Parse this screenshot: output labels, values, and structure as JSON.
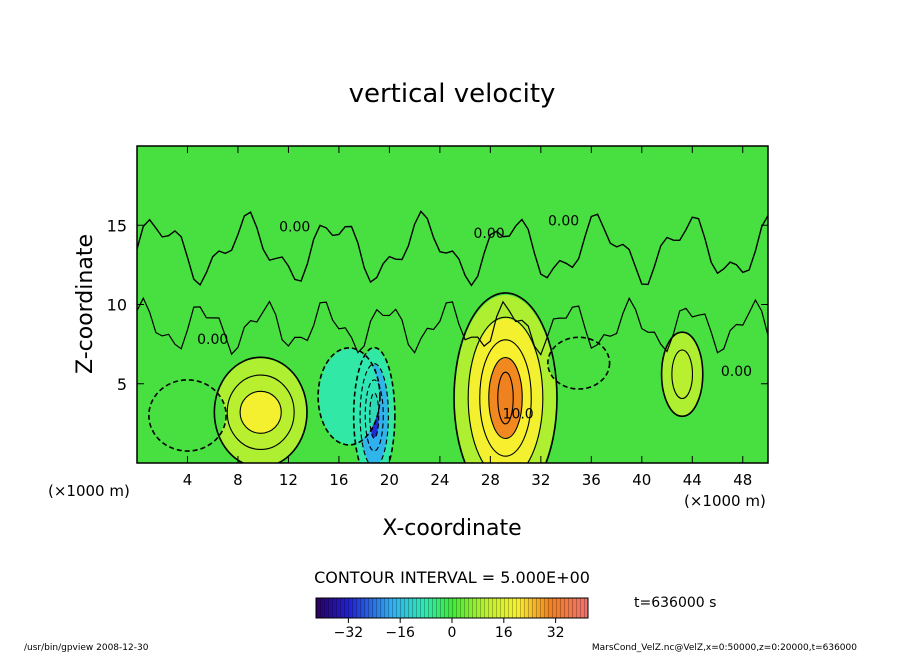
{
  "chart_data": {
    "type": "heatmap",
    "title": "vertical velocity",
    "xlabel": "X-coordinate",
    "ylabel": "Z-coordinate",
    "x_unit_left": "(×1000 m)",
    "x_unit_right": "(×1000 m)",
    "xlim": [
      0,
      50
    ],
    "ylim": [
      0,
      20
    ],
    "x_ticks": [
      "4",
      "8",
      "12",
      "16",
      "20",
      "24",
      "28",
      "32",
      "36",
      "40",
      "44",
      "48"
    ],
    "x_tick_values": [
      4,
      8,
      12,
      16,
      20,
      24,
      28,
      32,
      36,
      40,
      44,
      48
    ],
    "y_ticks": [
      "5",
      "10",
      "15"
    ],
    "y_tick_values": [
      5,
      10,
      15
    ],
    "contour_interval_label": "CONTOUR INTERVAL = 5.000E+00",
    "time_label": "t=636000 s",
    "contour_labels": [
      {
        "text": "0.00",
        "x": 12.5,
        "y": 14.6
      },
      {
        "text": "0.00",
        "x": 27.9,
        "y": 14.2
      },
      {
        "text": "0.00",
        "x": 33.8,
        "y": 15.0
      },
      {
        "text": "0.00",
        "x": 6.0,
        "y": 7.5
      },
      {
        "text": "10.0",
        "x": 30.2,
        "y": 2.8
      },
      {
        "text": "0.00",
        "x": 47.5,
        "y": 5.5
      }
    ],
    "colorbar": {
      "range": [
        -42,
        42
      ],
      "ticks": [
        "−32",
        "−16",
        "0",
        "16",
        "32"
      ],
      "tick_values": [
        -32,
        -16,
        0,
        16,
        32
      ]
    },
    "features": [
      {
        "x": 9.8,
        "z": 3.2,
        "value": 12
      },
      {
        "x": 29.2,
        "z": 4.1,
        "value": 22
      },
      {
        "x": 18.8,
        "z": 3.0,
        "value": -40
      },
      {
        "x": 16.8,
        "z": 4.2,
        "value": -12
      },
      {
        "x": 4.0,
        "z": 3.0,
        "value": -7
      },
      {
        "x": 43.2,
        "z": 5.6,
        "value": 8
      },
      {
        "x": 35.0,
        "z": 6.3,
        "value": -7
      }
    ]
  },
  "footer": {
    "left": "/usr/bin/gpview   2008-12-30",
    "right": "MarsCond_VelZ.nc@VelZ,x=0:50000,z=0:20000,t=636000"
  }
}
